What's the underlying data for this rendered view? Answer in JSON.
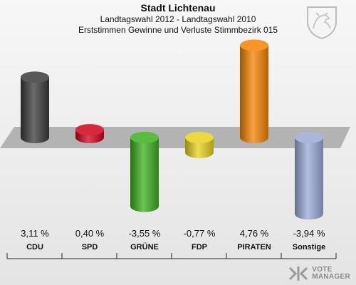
{
  "header": {
    "title": "Stadt Lichtenau",
    "subtitle1": "Landtagswahl 2012 - Landtagswahl 2010",
    "subtitle2": "Erststimmen Gewinne und Verluste Stimmbezirk 015"
  },
  "watermark": {
    "line1": "VOTE",
    "line2": "MANAGER"
  },
  "chart_data": {
    "type": "bar",
    "categories": [
      "CDU",
      "SPD",
      "GRÜNE",
      "FDP",
      "PIRATEN",
      "Sonstige"
    ],
    "values": [
      3.11,
      0.4,
      -3.55,
      -0.77,
      4.76,
      -3.94
    ],
    "value_labels": [
      "3,11 %",
      "0,40 %",
      "-3,55 %",
      "-0,77 %",
      "4,76 %",
      "-3,94 %"
    ],
    "colors": [
      "#3a3a3a",
      "#d0021b",
      "#3ab01a",
      "#e8d21c",
      "#f58200",
      "#9aaad6"
    ],
    "ylim": [
      -5,
      5
    ],
    "grid": false
  }
}
